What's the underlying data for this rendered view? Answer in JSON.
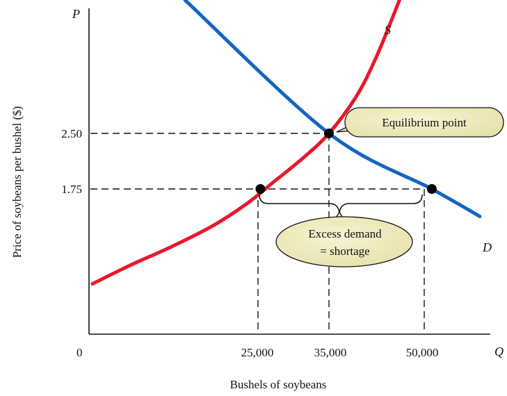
{
  "chart_data": {
    "type": "line",
    "title": "",
    "xlabel": "Bushels of soybeans",
    "ylabel": "Price of soybeans per bushel ($)",
    "x_axis_symbol": "Q",
    "y_axis_symbol": "P",
    "origin_label": "0",
    "x_tick_labels": [
      "25,000",
      "35,000",
      "50,000"
    ],
    "y_tick_labels": [
      "2.50",
      "1.75"
    ],
    "xlim": [
      0,
      58000
    ],
    "ylim": [
      0,
      4.6
    ],
    "grid": false,
    "series": [
      {
        "name": "S",
        "color": "#e8182c",
        "x": [
          500,
          6000,
          12000,
          18000,
          23000,
          27000,
          31000,
          35000,
          39000,
          42000,
          45500
        ],
        "y": [
          0.47,
          0.72,
          0.97,
          1.25,
          1.55,
          1.85,
          2.15,
          2.5,
          3.0,
          3.55,
          4.35
        ]
      },
      {
        "name": "D",
        "color": "#1565c0",
        "x": [
          14000,
          35000,
          50000,
          57000
        ],
        "y": [
          4.3,
          2.5,
          1.75,
          1.38
        ]
      }
    ],
    "points": [
      {
        "x": 35000,
        "y": 2.5
      },
      {
        "x": 25000,
        "y": 1.75
      },
      {
        "x": 50000,
        "y": 1.75
      }
    ],
    "annotations": {
      "equilibrium": "Equilibrium point",
      "excess_line1": "Excess demand",
      "excess_line2": "= shortage"
    }
  }
}
